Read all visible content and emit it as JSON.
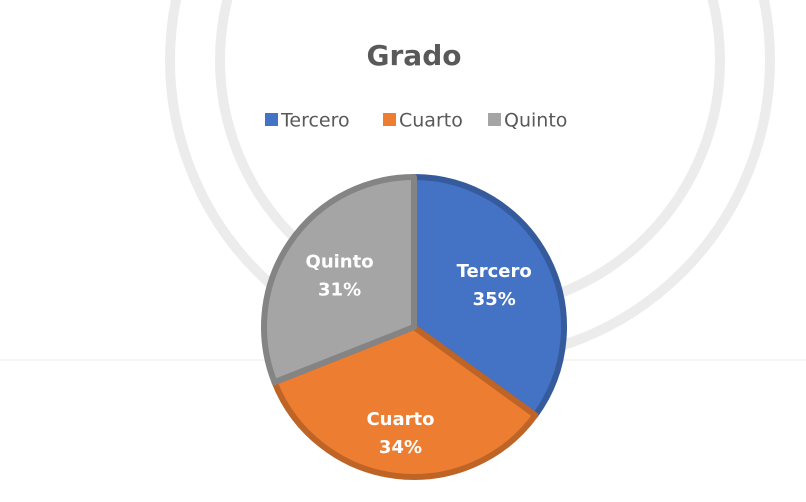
{
  "chart_data": {
    "type": "pie",
    "title": "Grado",
    "categories": [
      "Tercero",
      "Cuarto",
      "Quinto"
    ],
    "values": [
      35,
      34,
      31
    ],
    "value_labels": [
      "35%",
      "34%",
      "31%"
    ],
    "colors": [
      "#4472c4",
      "#ed7d31",
      "#a5a5a5"
    ],
    "legend": "top"
  }
}
